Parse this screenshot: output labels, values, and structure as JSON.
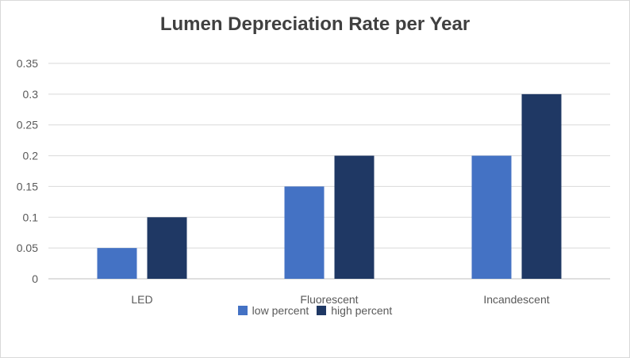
{
  "chart_data": {
    "type": "bar",
    "title": "Lumen Depreciation Rate per Year",
    "xlabel": "",
    "ylabel": "",
    "categories": [
      "LED",
      "Fluorescent",
      "Incandescent"
    ],
    "series": [
      {
        "name": "low percent",
        "values": [
          0.05,
          0.15,
          0.2
        ],
        "color": "#4472c4"
      },
      {
        "name": "high percent",
        "values": [
          0.1,
          0.2,
          0.3
        ],
        "color": "#1f3864"
      }
    ],
    "ylim": [
      0,
      0.35
    ],
    "yticks": [
      "0",
      "0.05",
      "0.1",
      "0.15",
      "0.2",
      "0.25",
      "0.3",
      "0.35"
    ],
    "grid": true,
    "legend_position": "bottom"
  }
}
